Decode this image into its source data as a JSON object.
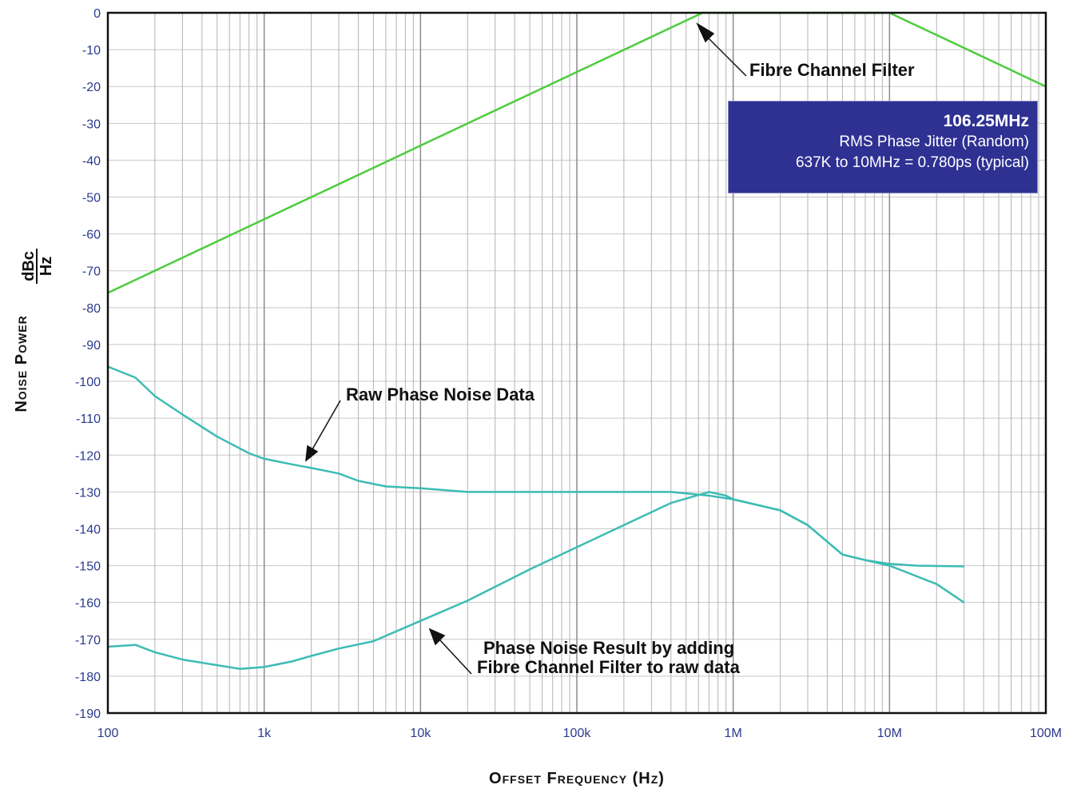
{
  "chart_data": {
    "type": "line",
    "title": "",
    "xlabel": "Offset Frequency (Hz)",
    "ylabel_main": "Noise Power",
    "ylabel_num": "dBc",
    "ylabel_den": "Hz",
    "x_scale": "log",
    "xlim": [
      100,
      100000000
    ],
    "ylim": [
      -190,
      0
    ],
    "grid": true,
    "x_ticks": [
      {
        "value": 100,
        "label": "100"
      },
      {
        "value": 1000,
        "label": "1k"
      },
      {
        "value": 10000,
        "label": "10k"
      },
      {
        "value": 100000,
        "label": "100k"
      },
      {
        "value": 1000000,
        "label": "1M"
      },
      {
        "value": 10000000,
        "label": "10M"
      },
      {
        "value": 100000000,
        "label": "100M"
      }
    ],
    "y_ticks": [
      0,
      -10,
      -20,
      -30,
      -40,
      -50,
      -60,
      -70,
      -80,
      -90,
      -100,
      -110,
      -120,
      -130,
      -140,
      -150,
      -160,
      -170,
      -180,
      -190
    ],
    "series": [
      {
        "color": "#4ccc3c",
        "points": [
          [
            100,
            -76
          ],
          [
            637000,
            0
          ],
          [
            10000000,
            0
          ],
          [
            100000000,
            -20
          ]
        ]
      },
      {
        "color": "#3cbcb4",
        "points": [
          [
            100,
            -96
          ],
          [
            150,
            -99
          ],
          [
            200,
            -104
          ],
          [
            300,
            -109
          ],
          [
            500,
            -115
          ],
          [
            800,
            -119.5
          ],
          [
            1000,
            -121
          ],
          [
            1500,
            -122.5
          ],
          [
            2000,
            -123.5
          ],
          [
            3000,
            -125
          ],
          [
            4000,
            -127
          ],
          [
            6000,
            -128.5
          ],
          [
            10000,
            -129
          ],
          [
            20000,
            -130
          ],
          [
            50000,
            -130
          ],
          [
            100000,
            -130
          ],
          [
            200000,
            -130
          ],
          [
            400000,
            -130
          ],
          [
            700000,
            -131
          ],
          [
            1000000,
            -132
          ],
          [
            2000000,
            -135
          ],
          [
            3000000,
            -139
          ],
          [
            5000000,
            -147
          ],
          [
            7000000,
            -148.5
          ],
          [
            10000000,
            -149.5
          ],
          [
            15000000,
            -150
          ],
          [
            30000000,
            -150.2
          ]
        ]
      },
      {
        "color": "#3cbcb4",
        "points": [
          [
            100,
            -172
          ],
          [
            150,
            -171.5
          ],
          [
            200,
            -173.5
          ],
          [
            300,
            -175.5
          ],
          [
            500,
            -177
          ],
          [
            700,
            -178
          ],
          [
            1000,
            -177.5
          ],
          [
            1500,
            -176
          ],
          [
            2000,
            -174.5
          ],
          [
            3000,
            -172.5
          ],
          [
            5000,
            -170.5
          ],
          [
            10000,
            -165
          ],
          [
            20000,
            -159.5
          ],
          [
            50000,
            -151
          ],
          [
            100000,
            -145
          ],
          [
            200000,
            -139
          ],
          [
            400000,
            -133
          ],
          [
            700000,
            -130
          ],
          [
            900000,
            -131
          ],
          [
            1000000,
            -132
          ],
          [
            2000000,
            -135
          ],
          [
            3000000,
            -139
          ],
          [
            5000000,
            -147
          ],
          [
            7000000,
            -148.5
          ],
          [
            10000000,
            -150
          ],
          [
            20000000,
            -155
          ],
          [
            30000000,
            -160
          ]
        ]
      }
    ],
    "annotations": [
      {
        "id": "fibre",
        "text": "Fibre Channel Filter"
      },
      {
        "id": "raw",
        "text": "Raw Phase Noise Data"
      },
      {
        "id": "result1",
        "text": "Phase Noise Result by adding"
      },
      {
        "id": "result2",
        "text": "Fibre Channel Filter to raw data"
      }
    ]
  },
  "info_box": {
    "title": "106.25MHz",
    "line1": "RMS Phase Jitter (Random)",
    "line2": "637K to 10MHz = 0.780ps (typical)",
    "background": "#2e3192"
  }
}
